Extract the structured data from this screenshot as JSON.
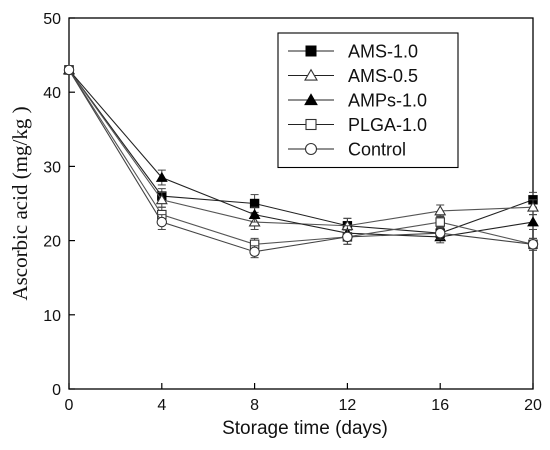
{
  "chart_data": {
    "type": "line",
    "xlabel": "Storage time (days)",
    "ylabel": "Ascorbic acid  (mg/kg )",
    "xlim": [
      0,
      20
    ],
    "ylim": [
      0,
      50
    ],
    "xticks": [
      0,
      4,
      8,
      12,
      16,
      20
    ],
    "yticks": [
      0,
      10,
      20,
      30,
      40,
      50
    ],
    "x": [
      0,
      4,
      8,
      12,
      16,
      20
    ],
    "grid": false,
    "legend_position": "top-right",
    "series": [
      {
        "name": "AMS-1.0",
        "marker": "square-filled",
        "values": [
          43,
          26.0,
          25.0,
          22.0,
          21.0,
          25.5
        ],
        "errors": [
          0,
          1.0,
          1.2,
          1.0,
          0.8,
          1.0
        ]
      },
      {
        "name": "AMS-0.5",
        "marker": "triangle-open",
        "values": [
          43,
          25.5,
          22.5,
          22.0,
          24.0,
          24.5
        ],
        "errors": [
          0,
          1.0,
          1.0,
          1.0,
          0.8,
          1.0
        ]
      },
      {
        "name": "AMPs-1.0",
        "marker": "triangle-filled",
        "values": [
          43,
          28.5,
          23.5,
          21.0,
          20.5,
          22.5
        ],
        "errors": [
          0,
          1.0,
          1.0,
          1.0,
          0.8,
          1.0
        ]
      },
      {
        "name": "PLGA-1.0",
        "marker": "square-open",
        "values": [
          43,
          23.5,
          19.5,
          20.5,
          22.5,
          19.5
        ],
        "errors": [
          0,
          1.0,
          0.8,
          1.0,
          0.8,
          0.8
        ]
      },
      {
        "name": "Control",
        "marker": "circle-open",
        "values": [
          43,
          22.5,
          18.5,
          20.5,
          21.0,
          19.5
        ],
        "errors": [
          0,
          1.0,
          0.8,
          1.0,
          0.8,
          0.8
        ]
      }
    ]
  }
}
